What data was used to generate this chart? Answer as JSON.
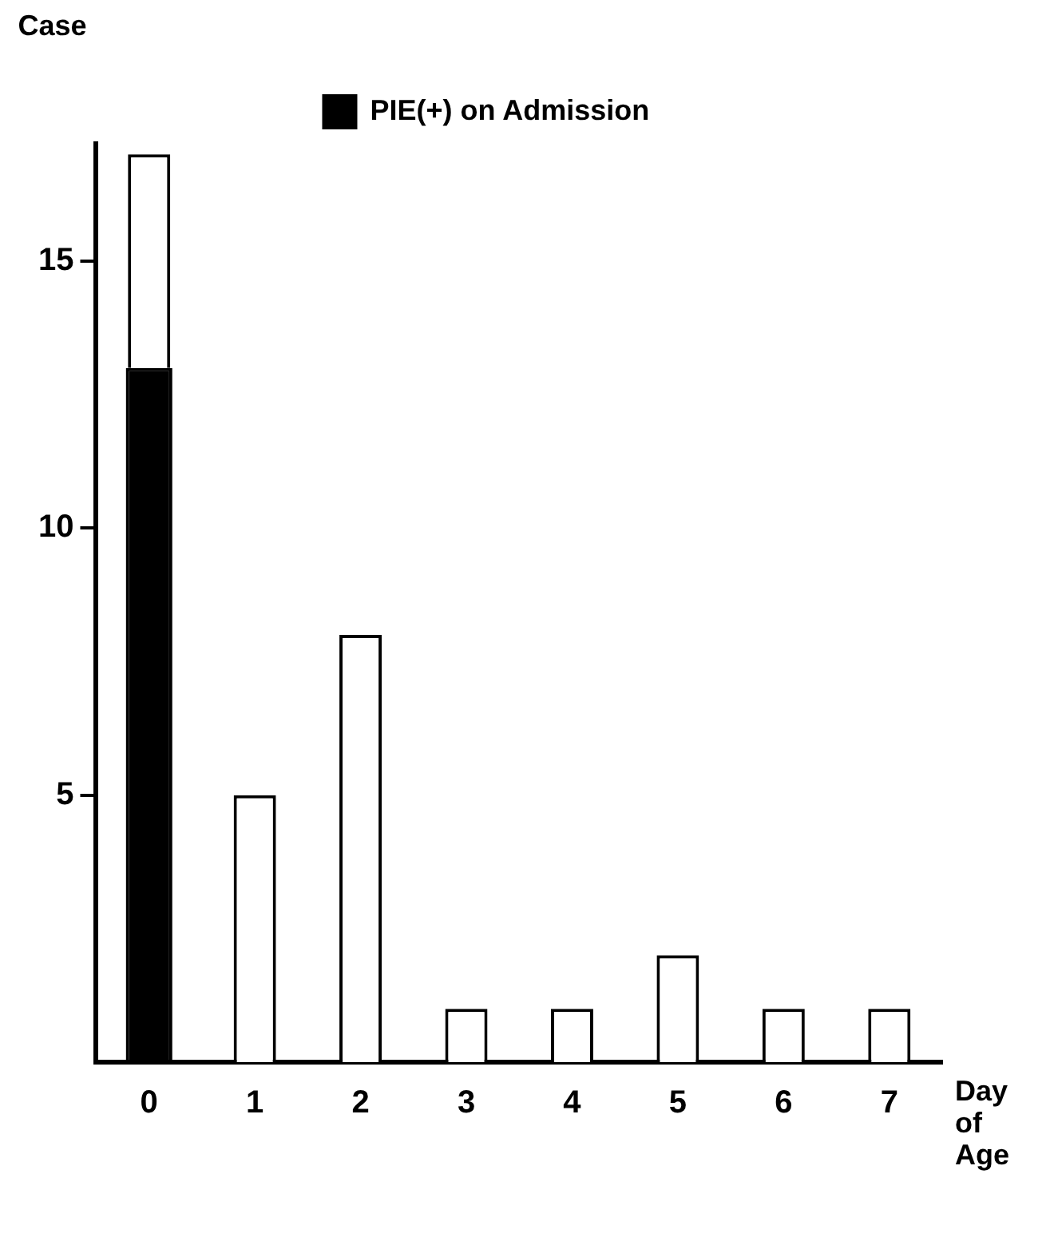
{
  "chart_data": {
    "type": "bar",
    "stacked": true,
    "ylabel": "Case",
    "xlabel": "Day of Age",
    "categories": [
      "0",
      "1",
      "2",
      "3",
      "4",
      "5",
      "6",
      "7"
    ],
    "series": [
      {
        "name": "PIE(+) on Admission",
        "color": "#000000",
        "values": [
          13,
          0,
          0,
          0,
          0,
          0,
          0,
          0
        ]
      },
      {
        "color": "#ffffff",
        "values": [
          4,
          5,
          8,
          1,
          1,
          2,
          1,
          1
        ]
      }
    ],
    "ylim": [
      0,
      17.2
    ],
    "yticks": [
      5,
      10,
      15
    ],
    "grid": false,
    "legend": "top right"
  }
}
